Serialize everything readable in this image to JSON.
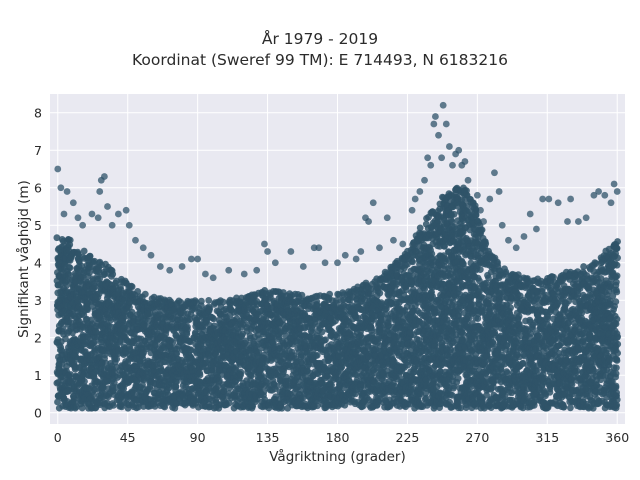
{
  "chart_data": {
    "type": "scatter",
    "title": "År 1979 - 2019",
    "subtitle": "Koordinat (Sweref 99 TM): E 714493, N 6183216",
    "xlabel": "Vågriktning (grader)",
    "ylabel": "Signifikant våghöjd (m)",
    "xlim": [
      -5,
      365
    ],
    "ylim": [
      -0.3,
      8.5
    ],
    "xticks": [
      0,
      45,
      90,
      135,
      180,
      225,
      270,
      315,
      360
    ],
    "yticks": [
      0,
      1,
      2,
      3,
      4,
      5,
      6,
      7,
      8
    ],
    "grid": true,
    "background": "#e9e9f1",
    "point_color": "#2f5369",
    "envelope": {
      "x": [
        0,
        10,
        20,
        30,
        40,
        50,
        60,
        75,
        90,
        105,
        120,
        135,
        150,
        165,
        180,
        195,
        205,
        215,
        225,
        232,
        240,
        248,
        255,
        262,
        268,
        275,
        285,
        300,
        315,
        330,
        345,
        355,
        360
      ],
      "y_max": [
        4.7,
        4.6,
        4.2,
        4.0,
        3.6,
        3.3,
        3.1,
        3.0,
        3.0,
        3.0,
        3.1,
        3.3,
        3.2,
        3.1,
        3.2,
        3.4,
        3.6,
        3.9,
        4.3,
        4.9,
        5.4,
        5.8,
        6.0,
        6.0,
        5.6,
        4.6,
        3.9,
        3.6,
        3.6,
        3.8,
        4.0,
        4.4,
        4.6
      ],
      "y_min": 0.0
    },
    "outliers": [
      [
        0,
        6.5
      ],
      [
        2,
        6.0
      ],
      [
        6,
        5.9
      ],
      [
        10,
        5.6
      ],
      [
        4,
        5.3
      ],
      [
        13,
        5.2
      ],
      [
        16,
        5.0
      ],
      [
        22,
        5.3
      ],
      [
        26,
        5.2
      ],
      [
        28,
        6.2
      ],
      [
        30,
        6.3
      ],
      [
        27,
        5.9
      ],
      [
        32,
        5.5
      ],
      [
        35,
        5.0
      ],
      [
        39,
        5.3
      ],
      [
        44,
        5.4
      ],
      [
        46,
        5.0
      ],
      [
        50,
        4.6
      ],
      [
        55,
        4.4
      ],
      [
        60,
        4.2
      ],
      [
        66,
        3.9
      ],
      [
        72,
        3.8
      ],
      [
        80,
        3.9
      ],
      [
        86,
        4.1
      ],
      [
        90,
        4.1
      ],
      [
        95,
        3.7
      ],
      [
        100,
        3.6
      ],
      [
        110,
        3.8
      ],
      [
        120,
        3.7
      ],
      [
        128,
        3.8
      ],
      [
        133,
        4.5
      ],
      [
        135,
        4.3
      ],
      [
        140,
        4.0
      ],
      [
        150,
        4.3
      ],
      [
        158,
        3.9
      ],
      [
        165,
        4.4
      ],
      [
        168,
        4.4
      ],
      [
        172,
        4.0
      ],
      [
        180,
        4.0
      ],
      [
        185,
        4.2
      ],
      [
        192,
        4.1
      ],
      [
        195,
        4.3
      ],
      [
        198,
        5.2
      ],
      [
        200,
        5.1
      ],
      [
        203,
        5.6
      ],
      [
        207,
        4.4
      ],
      [
        212,
        5.2
      ],
      [
        216,
        4.6
      ],
      [
        222,
        4.5
      ],
      [
        228,
        5.4
      ],
      [
        230,
        5.7
      ],
      [
        233,
        5.9
      ],
      [
        236,
        6.2
      ],
      [
        238,
        6.8
      ],
      [
        240,
        6.6
      ],
      [
        242,
        7.7
      ],
      [
        243,
        7.9
      ],
      [
        245,
        7.4
      ],
      [
        247,
        6.8
      ],
      [
        248,
        8.2
      ],
      [
        250,
        7.7
      ],
      [
        252,
        7.1
      ],
      [
        254,
        6.6
      ],
      [
        256,
        6.9
      ],
      [
        258,
        7.0
      ],
      [
        260,
        6.6
      ],
      [
        262,
        6.7
      ],
      [
        264,
        6.2
      ],
      [
        267,
        5.5
      ],
      [
        270,
        5.8
      ],
      [
        272,
        5.4
      ],
      [
        274,
        5.1
      ],
      [
        278,
        5.7
      ],
      [
        281,
        6.4
      ],
      [
        284,
        5.9
      ],
      [
        286,
        5.0
      ],
      [
        290,
        4.6
      ],
      [
        295,
        4.4
      ],
      [
        300,
        4.7
      ],
      [
        304,
        5.3
      ],
      [
        308,
        4.9
      ],
      [
        312,
        5.7
      ],
      [
        316,
        5.7
      ],
      [
        322,
        5.6
      ],
      [
        328,
        5.1
      ],
      [
        330,
        5.7
      ],
      [
        335,
        5.1
      ],
      [
        340,
        5.2
      ],
      [
        345,
        5.8
      ],
      [
        348,
        5.9
      ],
      [
        352,
        5.8
      ],
      [
        356,
        5.6
      ],
      [
        358,
        6.1
      ],
      [
        360,
        5.9
      ]
    ]
  }
}
